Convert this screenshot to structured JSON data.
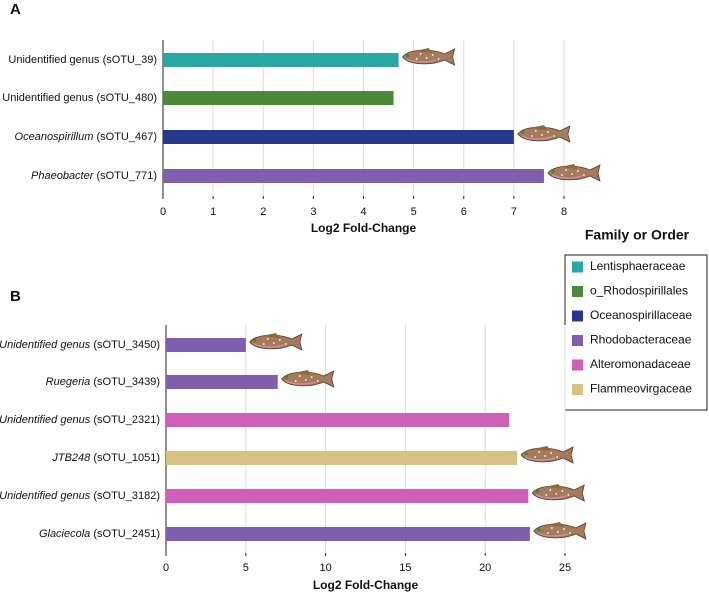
{
  "chart_data": [
    {
      "type": "hbar",
      "label": "A",
      "xlabel": "Log2 Fold-Change",
      "categories": [
        {
          "genus": "Unidentified genus",
          "otu": "(sOTU_39)",
          "italic": false
        },
        {
          "genus": "Unidentified genus",
          "otu": "(sOTU_480)",
          "italic": false
        },
        {
          "genus": "Oceanospirillum",
          "otu": "(sOTU_467)",
          "italic": true
        },
        {
          "genus": "Phaeobacter",
          "otu": "(sOTU_771)",
          "italic": true
        }
      ],
      "values": [
        4.7,
        4.6,
        7.0,
        7.6
      ],
      "colors": [
        "#2aa7a3",
        "#4b8a38",
        "#27388f",
        "#7f5eae"
      ],
      "fish": [
        true,
        false,
        true,
        true
      ],
      "xlim": [
        0,
        8
      ],
      "xticks": [
        0,
        1,
        2,
        3,
        4,
        5,
        6,
        7,
        8
      ],
      "grid": true
    },
    {
      "type": "hbar",
      "label": "B",
      "xlabel": "Log2 Fold-Change",
      "categories": [
        {
          "genus": "Unidentified genus",
          "otu": "(sOTU_3450)",
          "italic": true
        },
        {
          "genus": "Ruegeria",
          "otu": "(sOTU_3439)",
          "italic": true
        },
        {
          "genus": "Unidentified genus",
          "otu": "(sOTU_2321)",
          "italic": true
        },
        {
          "genus": "JTB248",
          "otu": "(sOTU_1051)",
          "italic": true
        },
        {
          "genus": "Unidentified genus",
          "otu": "(sOTU_3182)",
          "italic": true
        },
        {
          "genus": "Glaciecola",
          "otu": "(sOTU_2451)",
          "italic": true
        }
      ],
      "values": [
        5.0,
        7.0,
        21.5,
        22.0,
        22.7,
        22.8
      ],
      "colors": [
        "#7f5eae",
        "#7f5eae",
        "#cf5fb9",
        "#d9c182",
        "#cf5fb9",
        "#7f5eae"
      ],
      "fish": [
        true,
        true,
        false,
        true,
        true,
        true
      ],
      "xlim": [
        0,
        25
      ],
      "xticks": [
        0,
        5,
        10,
        15,
        20,
        25
      ],
      "grid": true
    }
  ],
  "legend": {
    "title": "Family or Order",
    "items": [
      {
        "name": "Lentisphaeraceae",
        "color": "#2aa7a3"
      },
      {
        "name": "o_Rhodospirillales",
        "color": "#4b8a38"
      },
      {
        "name": "Oceanospirillaceae",
        "color": "#27388f"
      },
      {
        "name": "Rhodobacteraceae",
        "color": "#7f5eae"
      },
      {
        "name": "Alteromonadaceae",
        "color": "#cf5fb9"
      },
      {
        "name": "Flammeovirgaceae",
        "color": "#d9c182"
      }
    ]
  }
}
